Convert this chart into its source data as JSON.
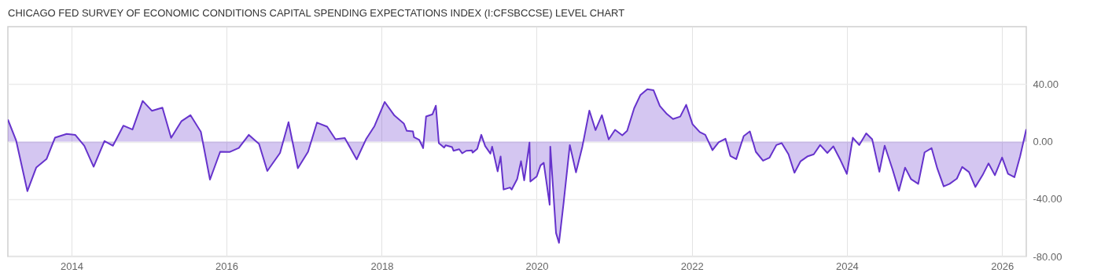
{
  "chart_data": {
    "type": "area",
    "title": "CHICAGO FED SURVEY OF ECONOMIC CONDITIONS CAPITAL SPENDING EXPECTATIONS INDEX (I:CFSBCCSE) LEVEL CHART",
    "x": [
      "2013-03-07",
      "2013-04-15",
      "2013-06-07",
      "2013-07-19",
      "2013-09-05",
      "2013-10-15",
      "2013-12-09",
      "2014-01-19",
      "2014-03-02",
      "2014-04-15",
      "2014-06-05",
      "2014-07-15",
      "2014-09-02",
      "2014-10-15",
      "2014-12-02",
      "2015-01-15",
      "2015-03-05",
      "2015-04-15",
      "2015-06-02",
      "2015-07-15",
      "2015-09-02",
      "2015-10-15",
      "2015-12-02",
      "2016-01-15",
      "2016-02-28",
      "2016-04-15",
      "2016-06-02",
      "2016-07-11",
      "2016-09-09",
      "2016-10-19",
      "2016-12-02",
      "2017-01-19",
      "2017-03-02",
      "2017-04-19",
      "2017-05-28",
      "2017-07-11",
      "2017-09-05",
      "2017-10-19",
      "2017-11-28",
      "2018-01-15",
      "2018-03-02",
      "2018-04-15",
      "2018-04-29",
      "2018-05-28",
      "2018-06-02",
      "2018-06-27",
      "2018-07-15",
      "2018-07-29",
      "2018-08-28",
      "2018-09-13",
      "2018-09-27",
      "2018-10-22",
      "2018-10-29",
      "2018-11-28",
      "2018-12-05",
      "2019-01-01",
      "2019-01-15",
      "2019-02-03",
      "2019-03-02",
      "2019-03-05",
      "2019-03-27",
      "2019-04-15",
      "2019-05-03",
      "2019-05-28",
      "2019-06-05",
      "2019-07-01",
      "2019-07-15",
      "2019-07-29",
      "2019-08-28",
      "2019-09-05",
      "2019-10-01",
      "2019-10-19",
      "2019-11-03",
      "2019-11-28",
      "2019-12-02",
      "2020-01-01",
      "2020-01-19",
      "2020-02-03",
      "2020-03-02",
      "2020-03-05",
      "2020-04-01",
      "2020-04-15",
      "2020-05-07",
      "2020-06-05",
      "2020-07-04",
      "2020-08-03",
      "2020-09-05",
      "2020-10-04",
      "2020-11-03",
      "2020-12-05",
      "2021-01-04",
      "2021-02-07",
      "2021-03-02",
      "2021-04-04",
      "2021-05-03",
      "2021-06-05",
      "2021-07-04",
      "2021-08-03",
      "2021-09-05",
      "2021-10-04",
      "2021-11-07",
      "2021-12-05",
      "2022-01-04",
      "2022-02-07",
      "2022-03-05",
      "2022-04-08",
      "2022-05-07",
      "2022-06-08",
      "2022-07-01",
      "2022-07-29",
      "2022-09-02",
      "2022-10-01",
      "2022-10-29",
      "2022-12-02",
      "2023-01-01",
      "2023-02-03",
      "2023-02-28",
      "2023-04-01",
      "2023-04-29",
      "2023-05-28",
      "2023-07-01",
      "2023-07-29",
      "2023-08-28",
      "2023-10-01",
      "2023-10-29",
      "2023-12-02",
      "2024-01-01",
      "2024-01-29",
      "2024-02-28",
      "2024-04-01",
      "2024-04-29",
      "2024-06-02",
      "2024-06-27",
      "2024-08-03",
      "2024-09-02",
      "2024-10-01",
      "2024-10-29",
      "2024-12-02",
      "2025-01-01",
      "2025-02-03",
      "2025-03-02",
      "2025-04-01",
      "2025-04-29",
      "2025-06-02",
      "2025-06-27",
      "2025-07-29",
      "2025-08-28",
      "2025-10-01",
      "2025-10-29",
      "2025-11-28",
      "2026-01-01",
      "2026-01-29",
      "2026-02-28",
      "2026-03-27",
      "2026-04-25"
    ],
    "series": [
      {
        "color": "#6633cc",
        "values": [
          15.3,
          0.7,
          -34.5,
          -18,
          -12.2,
          2.7,
          5.3,
          4.6,
          -2.9,
          -17.5,
          0.4,
          -2.9,
          11.1,
          8.4,
          28.3,
          21.4,
          23.6,
          2.6,
          14.1,
          18.4,
          6.8,
          -26.5,
          -7.1,
          -7.3,
          -4.4,
          4.7,
          -1.6,
          -20.5,
          -7.9,
          13.5,
          -18.6,
          -7.1,
          13.2,
          10.4,
          1.6,
          2.4,
          -12.4,
          1.6,
          10.8,
          27.6,
          18.1,
          12.6,
          7.5,
          7.1,
          3.1,
          1.1,
          -4.6,
          17.5,
          19,
          25,
          -1.1,
          -4.2,
          -2.6,
          -3.8,
          -6.4,
          -5.3,
          -8.2,
          -6.4,
          -6.2,
          -7.7,
          -5.1,
          4.7,
          -3.1,
          -8.4,
          -3.5,
          -20.8,
          -10.4,
          -33.4,
          -32,
          -33.4,
          -26.1,
          -13.7,
          -27,
          -0.7,
          -27.9,
          -24.3,
          -16.6,
          -14.8,
          -44,
          -3.5,
          -63.7,
          -70.5,
          -42.2,
          -2.4,
          -21.4,
          -3.5,
          21.6,
          8,
          18.4,
          1.5,
          8.2,
          4.4,
          7.5,
          23.2,
          32.3,
          36.5,
          35.8,
          24.8,
          19.2,
          15.7,
          17.4,
          25.6,
          12.1,
          6.6,
          4.7,
          -6,
          -0.5,
          2,
          -10,
          -12.2,
          3.8,
          7.1,
          -7.1,
          -13.3,
          -11.3,
          -2.4,
          -1.1,
          -8.9,
          -21.7,
          -13.7,
          -10.2,
          -8.9,
          -2.4,
          -7.9,
          -3.3,
          -13,
          -22.5,
          2.7,
          -2.4,
          5.7,
          1.6,
          -21,
          -2.9,
          -19.4,
          -34.2,
          -18.1,
          -26.1,
          -29.4,
          -7.5,
          -4.6,
          -18.8,
          -31.2,
          -29.4,
          -25.8,
          -17.7,
          -21.2,
          -31.6,
          -23.4,
          -15.2,
          -23.4,
          -11.1,
          -22.5,
          -24.8,
          -10.2,
          8.6
        ]
      }
    ],
    "xlim": [
      "2013-03-07",
      "2026-04-25"
    ],
    "xticks": [
      "2014",
      "2016",
      "2018",
      "2020",
      "2022",
      "2024",
      "2026"
    ],
    "ylim": [
      -80,
      80
    ],
    "yticks": [
      {
        "value": -80,
        "label": "-80.00"
      },
      {
        "value": -40,
        "label": "-40.00"
      },
      {
        "value": 0,
        "label": "0.00"
      },
      {
        "value": 40,
        "label": "40.00"
      }
    ],
    "grid": true,
    "line_style": "solid"
  }
}
